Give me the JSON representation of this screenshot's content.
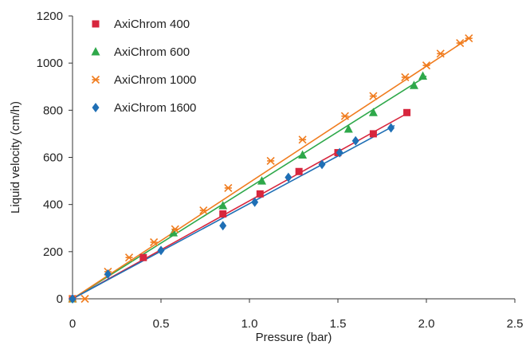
{
  "chart_data": {
    "type": "scatter",
    "xlabel": "Pressure (bar)",
    "ylabel": "Liquid velocity (cm/h)",
    "xlim": [
      0,
      2.5
    ],
    "ylim": [
      0,
      1200
    ],
    "xticks": [
      "0",
      "0.5",
      "1.0",
      "1.5",
      "2.0",
      "2.5"
    ],
    "yticks": [
      "0",
      "200",
      "400",
      "600",
      "800",
      "1000",
      "1200"
    ],
    "grid": false,
    "legend_position": "top-left",
    "series": [
      {
        "name": "AxiChrom 400",
        "color": "#d7263d",
        "marker": "square",
        "x": [
          0,
          0.4,
          0.85,
          1.06,
          1.28,
          1.5,
          1.7,
          1.89
        ],
        "y": [
          0,
          175,
          360,
          445,
          540,
          620,
          700,
          790
        ],
        "fit": [
          [
            0,
            0
          ],
          [
            1.9,
            790
          ]
        ]
      },
      {
        "name": "AxiChrom 600",
        "color": "#2ea84a",
        "marker": "triangle",
        "x": [
          0,
          0.57,
          0.85,
          1.07,
          1.3,
          1.56,
          1.7,
          1.93,
          1.98
        ],
        "y": [
          0,
          280,
          395,
          500,
          610,
          720,
          790,
          905,
          945
        ],
        "fit": [
          [
            0,
            0
          ],
          [
            2.0,
            945
          ]
        ]
      },
      {
        "name": "AxiChrom 1000",
        "color": "#f07c1e",
        "marker": "asterisk",
        "x": [
          0,
          0.07,
          0.2,
          0.32,
          0.46,
          0.58,
          0.74,
          0.88,
          1.12,
          1.3,
          1.54,
          1.7,
          1.88,
          2.0,
          2.08,
          2.19,
          2.24
        ],
        "y": [
          0,
          0,
          115,
          175,
          240,
          295,
          375,
          470,
          585,
          675,
          775,
          860,
          940,
          990,
          1040,
          1085,
          1105
        ],
        "fit": [
          [
            0,
            0
          ],
          [
            2.25,
            1110
          ]
        ]
      },
      {
        "name": "AxiChrom 1600",
        "color": "#1f6fb5",
        "marker": "diamond",
        "x": [
          0,
          0.2,
          0.5,
          0.85,
          1.03,
          1.22,
          1.41,
          1.51,
          1.6,
          1.8
        ],
        "y": [
          0,
          105,
          205,
          310,
          410,
          515,
          570,
          620,
          670,
          725
        ],
        "fit": [
          [
            0,
            0
          ],
          [
            1.82,
            735
          ]
        ]
      }
    ]
  }
}
